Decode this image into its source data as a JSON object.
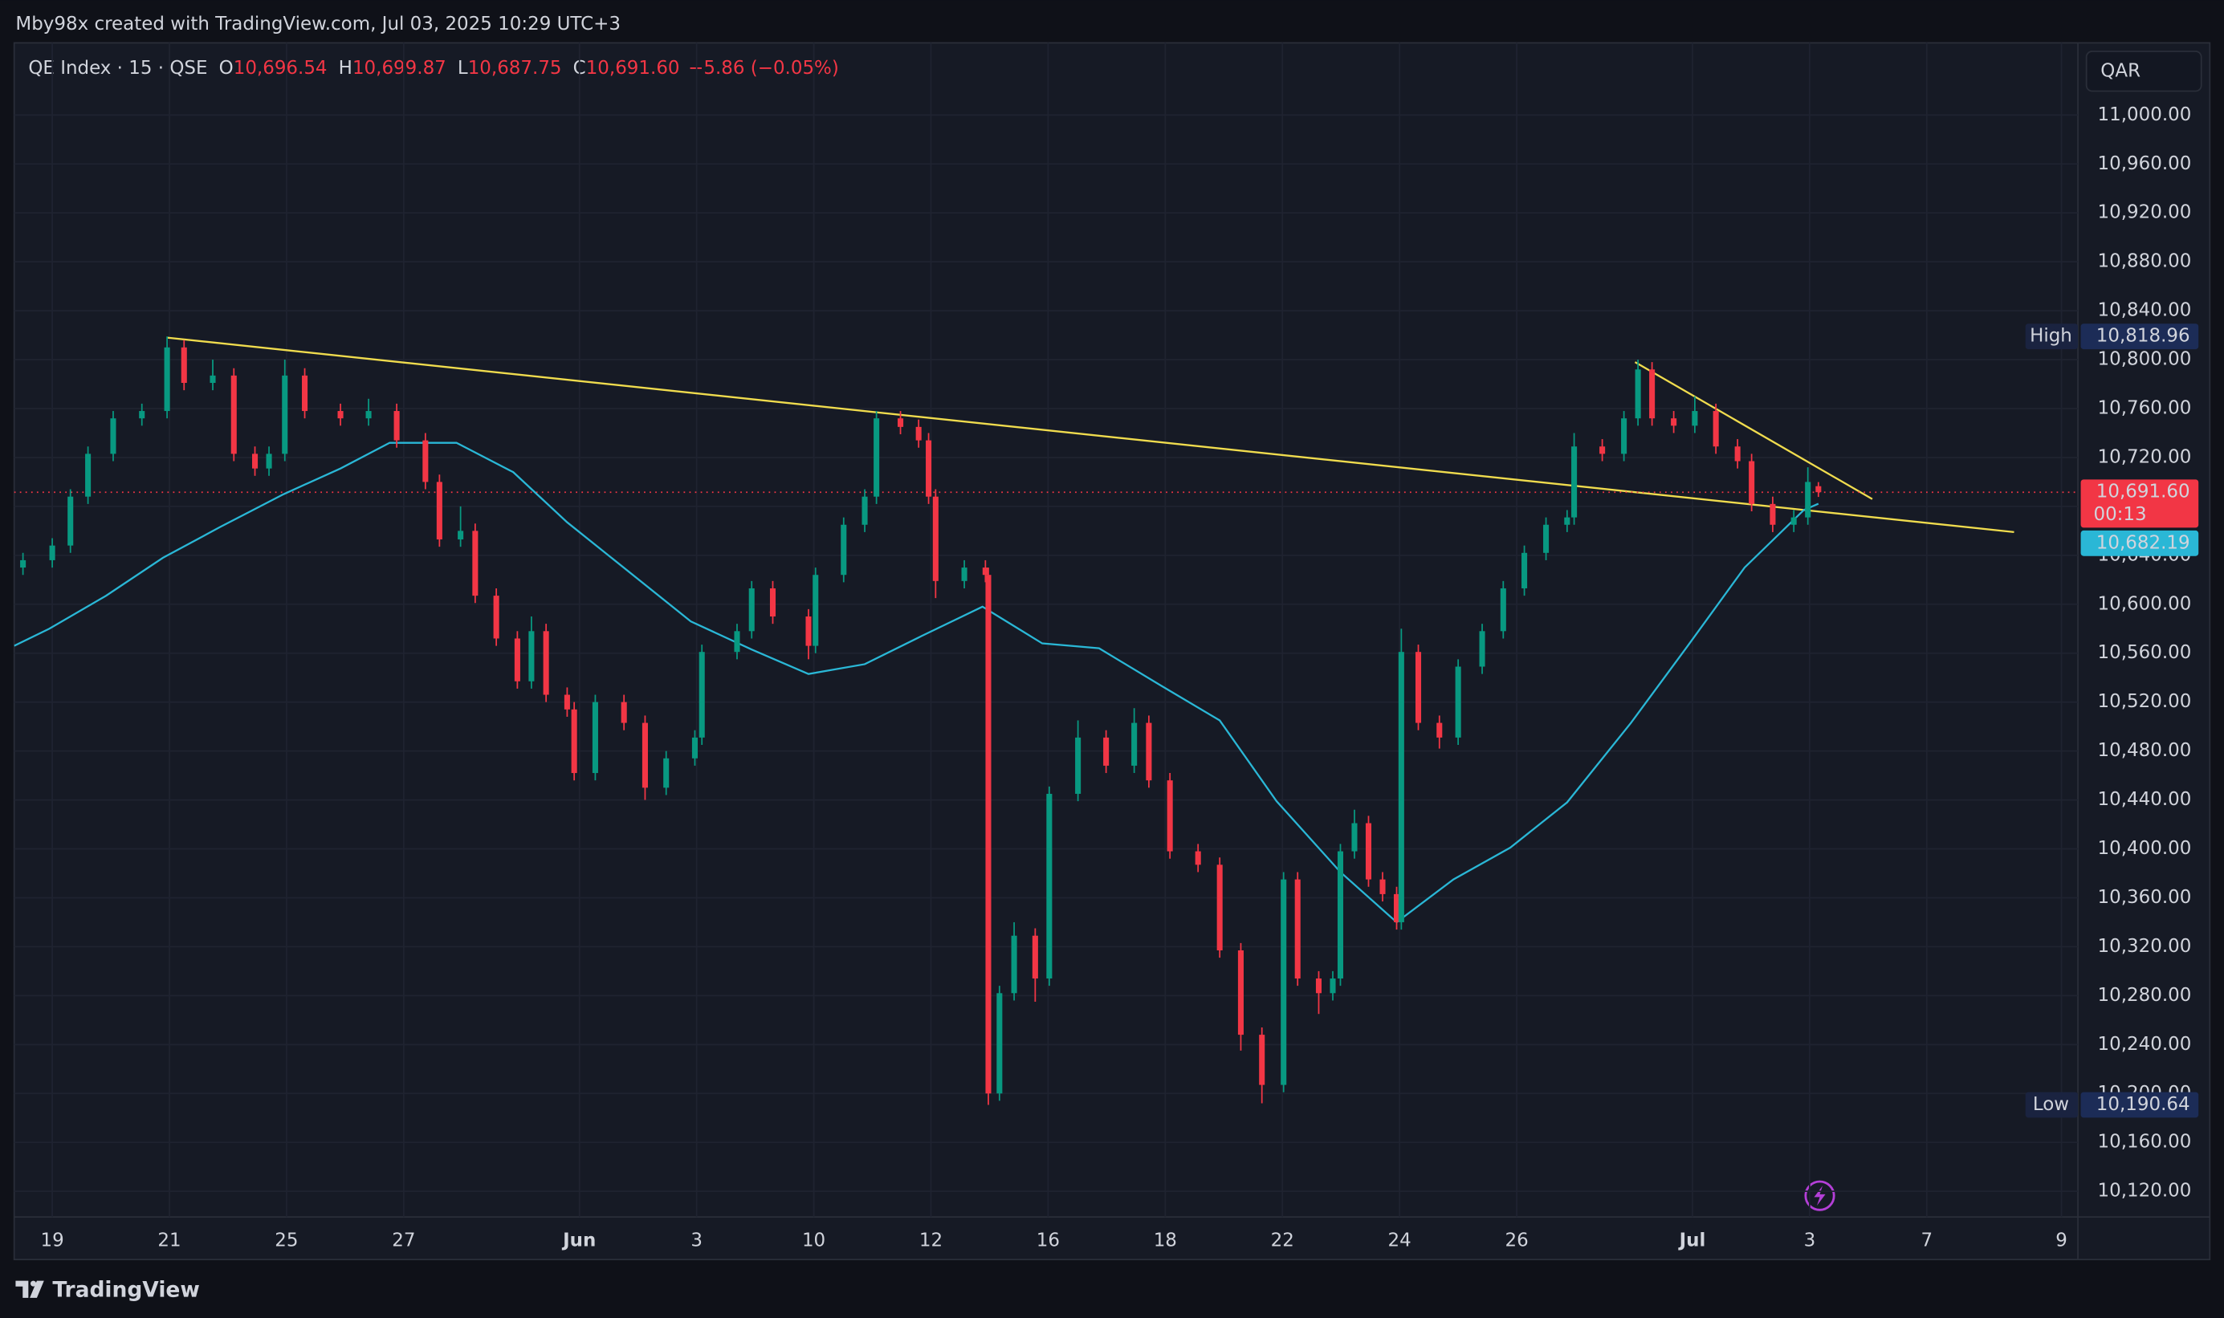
{
  "header": {
    "attribution": "Mby98x created with TradingView.com, Jul 03, 2025 10:29 UTC+3",
    "symbol": "QE Index · 15 · QSE",
    "ohlc": [
      {
        "key": "O",
        "value": "10,696.54"
      },
      {
        "key": "H",
        "value": "10,699.87"
      },
      {
        "key": "L",
        "value": "10,687.75"
      },
      {
        "key": "C",
        "value": "10,691.60"
      }
    ],
    "change": "−5.86 (−0.05%)",
    "currency": "QAR"
  },
  "chart_data": {
    "type": "candlestick",
    "x": [
      -0.5,
      0,
      0.31,
      0.61,
      1.04,
      1.53,
      1.96,
      2.25,
      2.74,
      3.1,
      3.46,
      3.7,
      3.97,
      4.31,
      4.92,
      5.4,
      5.88,
      6.37,
      6.61,
      6.97,
      7.22,
      7.58,
      7.94,
      8.18,
      8.43,
      8.79,
      8.91,
      9.27,
      9.76,
      10.12,
      10.48,
      10.97,
      11.09,
      11.69,
      11.94,
      12.3,
      12.91,
      13.03,
      13.51,
      13.87,
      14.07,
      14.48,
      14.79,
      14.96,
      15.08,
      15.57,
      15.93,
      15.98,
      16.17,
      16.42,
      16.78,
      17.02,
      17.51,
      17.99,
      18.47,
      18.72,
      19.08,
      19.56,
      19.93,
      20.29,
      20.65,
      21.02,
      21.26,
      21.62,
      21.86,
      21.99,
      22.23,
      22.47,
      22.71,
      22.95,
      23.03,
      23.32,
      23.68,
      24.0,
      24.41,
      24.77,
      25.13,
      25.5,
      25.86,
      25.98,
      26.46,
      26.83,
      27.07,
      27.31,
      27.68,
      28.04,
      28.4,
      28.77,
      29.01,
      29.37,
      29.73,
      29.97,
      30.15
    ],
    "open": [
      10630,
      10636,
      10648,
      10688,
      10723,
      10752,
      10758,
      10810,
      10781,
      10787,
      10723,
      10711,
      10723,
      10787,
      10758,
      10752,
      10758,
      10734,
      10700,
      10653,
      10660,
      10607,
      10572,
      10537,
      10578,
      10526,
      10514,
      10462,
      10520,
      10503,
      10450,
      10474,
      10491,
      10561,
      10578,
      10613,
      10590,
      10566,
      10624,
      10665,
      10688,
      10752,
      10745,
      10734,
      10688,
      10619,
      10630,
      10624,
      10200,
      10282,
      10329,
      10294,
      10445,
      10491,
      10468,
      10503,
      10456,
      10398,
      10387,
      10317,
      10248,
      10207,
      10375,
      10294,
      10282,
      10294,
      10398,
      10421,
      10375,
      10363,
      10340,
      10561,
      10503,
      10491,
      10549,
      10578,
      10613,
      10642,
      10665,
      10671,
      10729,
      10723,
      10752,
      10792,
      10752,
      10746,
      10758,
      10729,
      10717,
      10682,
      10665,
      10671,
      10696.54
    ],
    "high": [
      10642,
      10654,
      10694,
      10729,
      10758,
      10764,
      10818.96,
      10816,
      10800,
      10793,
      10729,
      10729,
      10800,
      10793,
      10764,
      10768,
      10764,
      10740,
      10706,
      10680,
      10666,
      10613,
      10578,
      10590,
      10584,
      10532,
      10520,
      10526,
      10526,
      10509,
      10480,
      10497,
      10567,
      10584,
      10619,
      10619,
      10596,
      10630,
      10671,
      10694,
      10758,
      10758,
      10751,
      10740,
      10694,
      10636,
      10636,
      10630,
      10288,
      10340,
      10335,
      10451,
      10505,
      10497,
      10515,
      10509,
      10462,
      10404,
      10393,
      10323,
      10254,
      10381,
      10381,
      10300,
      10300,
      10404,
      10432,
      10427,
      10381,
      10369,
      10580,
      10567,
      10509,
      10555,
      10584,
      10619,
      10648,
      10671,
      10677,
      10740,
      10735,
      10758,
      10800,
      10798,
      10758,
      10770,
      10764,
      10735,
      10723,
      10688,
      10677,
      10712,
      10699.87
    ],
    "low": [
      10624,
      10630,
      10642,
      10682,
      10717,
      10746,
      10752,
      10775,
      10775,
      10717,
      10705,
      10705,
      10717,
      10752,
      10746,
      10746,
      10728,
      10694,
      10647,
      10647,
      10601,
      10566,
      10531,
      10531,
      10520,
      10508,
      10456,
      10456,
      10497,
      10440,
      10444,
      10468,
      10485,
      10555,
      10572,
      10584,
      10555,
      10560,
      10618,
      10659,
      10682,
      10739,
      10728,
      10682,
      10605,
      10613,
      10618,
      10190.64,
      10194,
      10276,
      10275,
      10288,
      10439,
      10462,
      10462,
      10450,
      10392,
      10381,
      10311,
      10235,
      10192,
      10201,
      10288,
      10265,
      10276,
      10288,
      10392,
      10369,
      10357,
      10334,
      10334,
      10497,
      10482,
      10485,
      10543,
      10572,
      10607,
      10636,
      10659,
      10665,
      10717,
      10717,
      10746,
      10746,
      10740,
      10740,
      10723,
      10711,
      10676,
      10659,
      10659,
      10665,
      10687.75
    ],
    "close": [
      10636,
      10648,
      10688,
      10723,
      10752,
      10758,
      10810,
      10781,
      10787,
      10723,
      10711,
      10723,
      10787,
      10758,
      10752,
      10758,
      10734,
      10700,
      10653,
      10660,
      10607,
      10572,
      10537,
      10578,
      10526,
      10514,
      10462,
      10520,
      10503,
      10450,
      10474,
      10491,
      10561,
      10578,
      10613,
      10590,
      10566,
      10624,
      10665,
      10688,
      10752,
      10745,
      10734,
      10688,
      10619,
      10630,
      10624,
      10200,
      10282,
      10329,
      10294,
      10445,
      10491,
      10468,
      10503,
      10456,
      10398,
      10387,
      10317,
      10248,
      10207,
      10375,
      10294,
      10282,
      10294,
      10398,
      10421,
      10375,
      10363,
      10340,
      10561,
      10503,
      10491,
      10549,
      10578,
      10613,
      10642,
      10665,
      10671,
      10729,
      10723,
      10752,
      10792,
      10752,
      10746,
      10758,
      10729,
      10717,
      10682,
      10665,
      10671,
      10700,
      10691.6
    ],
    "up_color": "#089981",
    "down_color": "#f23645",
    "xlim": [
      -0.65,
      34.58
    ],
    "xticks": [
      {
        "value": 0,
        "label": "19"
      },
      {
        "value": 2,
        "label": "21"
      },
      {
        "value": 4,
        "label": "25"
      },
      {
        "value": 6,
        "label": "27"
      },
      {
        "value": 9,
        "label": "Jun"
      },
      {
        "value": 11,
        "label": "3"
      },
      {
        "value": 13,
        "label": "10"
      },
      {
        "value": 15,
        "label": "12"
      },
      {
        "value": 17,
        "label": "16"
      },
      {
        "value": 19,
        "label": "18"
      },
      {
        "value": 21,
        "label": "22"
      },
      {
        "value": 23,
        "label": "24"
      },
      {
        "value": 25,
        "label": "26"
      },
      {
        "value": 28,
        "label": "Jul"
      },
      {
        "value": 30,
        "label": "3"
      },
      {
        "value": 32,
        "label": "7"
      },
      {
        "value": 34.3,
        "label": "9"
      }
    ],
    "ylim": [
      10099,
      11059
    ],
    "yticks": [
      {
        "value": 10120,
        "label": "10,120.00"
      },
      {
        "value": 10160,
        "label": "10,160.00"
      },
      {
        "value": 10200,
        "label": "10,200.00"
      },
      {
        "value": 10240,
        "label": "10,240.00"
      },
      {
        "value": 10280,
        "label": "10,280.00"
      },
      {
        "value": 10320,
        "label": "10,320.00"
      },
      {
        "value": 10360,
        "label": "10,360.00"
      },
      {
        "value": 10400,
        "label": "10,400.00"
      },
      {
        "value": 10440,
        "label": "10,440.00"
      },
      {
        "value": 10480,
        "label": "10,480.00"
      },
      {
        "value": 10520,
        "label": "10,520.00"
      },
      {
        "value": 10560,
        "label": "10,560.00"
      },
      {
        "value": 10600,
        "label": "10,600.00"
      },
      {
        "value": 10640,
        "label": "10,640.00"
      },
      {
        "value": 10680,
        "label": "10,680.00"
      },
      {
        "value": 10720,
        "label": "10,720.00"
      },
      {
        "value": 10760,
        "label": "10,760.00"
      },
      {
        "value": 10800,
        "label": "10,800.00"
      },
      {
        "value": 10840,
        "label": "10,840.00"
      },
      {
        "value": 10880,
        "label": "10,880.00"
      },
      {
        "value": 10920,
        "label": "10,920.00"
      },
      {
        "value": 10960,
        "label": "10,960.00"
      },
      {
        "value": 11000,
        "label": "11,000.00"
      }
    ],
    "grid": true,
    "moving_average": {
      "color": "#2ab7d6",
      "x": [
        -0.65,
        -0.05,
        0.92,
        1.89,
        2.86,
        3.95,
        4.92,
        5.76,
        6.9,
        7.87,
        8.79,
        10.9,
        11.94,
        12.91,
        13.87,
        14.84,
        15.88,
        16.9,
        17.87,
        18.91,
        19.93,
        20.9,
        21.99,
        22.95,
        23.92,
        24.89,
        25.86,
        26.95,
        27.92,
        28.89,
        29.9,
        30.15
      ],
      "values": [
        10566,
        10580,
        10607,
        10638,
        10663,
        10690,
        10711,
        10732,
        10732,
        10708,
        10667,
        10586,
        10563,
        10543,
        10551,
        10574,
        10598,
        10568,
        10564,
        10534,
        10505,
        10439,
        10381,
        10340,
        10375,
        10401,
        10438,
        10503,
        10566,
        10630,
        10677,
        10682.19
      ]
    },
    "trendlines": [
      {
        "color": "#f0dc4e",
        "x": [
          1.96,
          33.49
        ],
        "values": [
          10818,
          10659
        ]
      },
      {
        "color": "#f0dc4e",
        "x": [
          27.02,
          31.07
        ],
        "values": [
          10798,
          10686
        ]
      }
    ],
    "price_labels": {
      "high": {
        "name": "High",
        "value": 10818.96,
        "label": "10,818.96"
      },
      "low": {
        "name": "Low",
        "value": 10190.64,
        "label": "10,190.64"
      },
      "last": {
        "value": 10691.6,
        "label": "10,691.60",
        "countdown": "00:13",
        "color": "#f23645"
      },
      "ma": {
        "value": 10682.19,
        "label": "10,682.19",
        "color": "#2ab7d6"
      }
    }
  },
  "footer": {
    "brand": "TradingView"
  }
}
